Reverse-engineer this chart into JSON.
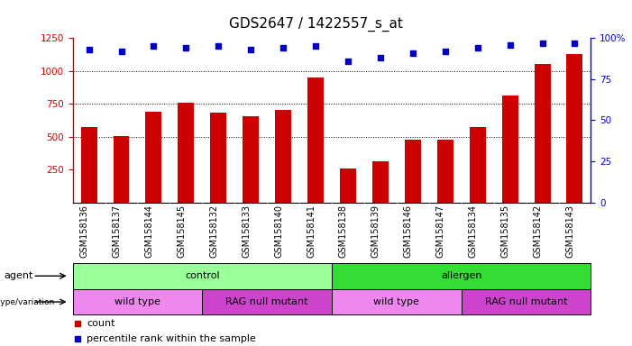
{
  "title": "GDS2647 / 1422557_s_at",
  "samples": [
    "GSM158136",
    "GSM158137",
    "GSM158144",
    "GSM158145",
    "GSM158132",
    "GSM158133",
    "GSM158140",
    "GSM158141",
    "GSM158138",
    "GSM158139",
    "GSM158146",
    "GSM158147",
    "GSM158134",
    "GSM158135",
    "GSM158142",
    "GSM158143"
  ],
  "counts": [
    570,
    505,
    690,
    755,
    680,
    655,
    700,
    950,
    255,
    310,
    475,
    480,
    570,
    815,
    1055,
    1130
  ],
  "percentile_ranks": [
    93,
    92,
    95,
    94,
    95,
    93,
    94,
    95,
    86,
    88,
    91,
    92,
    94,
    96,
    97,
    97
  ],
  "ylim_left": [
    0,
    1250
  ],
  "yticks_left": [
    250,
    500,
    750,
    1000,
    1250
  ],
  "ylim_right": [
    0,
    100
  ],
  "yticks_right": [
    0,
    25,
    50,
    75,
    100
  ],
  "bar_color": "#cc0000",
  "dot_color": "#0000cc",
  "agent_labels": [
    {
      "text": "control",
      "start": 0,
      "end": 8,
      "color": "#99ff99"
    },
    {
      "text": "allergen",
      "start": 8,
      "end": 16,
      "color": "#33dd33"
    }
  ],
  "genotype_labels": [
    {
      "text": "wild type",
      "start": 0,
      "end": 4,
      "color": "#ee88ee"
    },
    {
      "text": "RAG null mutant",
      "start": 4,
      "end": 8,
      "color": "#cc44cc"
    },
    {
      "text": "wild type",
      "start": 8,
      "end": 12,
      "color": "#ee88ee"
    },
    {
      "text": "RAG null mutant",
      "start": 12,
      "end": 16,
      "color": "#cc44cc"
    }
  ],
  "agent_row_label": "agent",
  "genotype_row_label": "genotype/variation",
  "legend_count_label": "count",
  "legend_pct_label": "percentile rank within the sample",
  "tick_label_color": "#cc0000",
  "right_tick_label_color": "#0000cc",
  "title_fontsize": 11,
  "label_fontsize": 8,
  "tick_fontsize": 7.5,
  "xtick_fontsize": 7,
  "xtick_bg": "#d8d8d8"
}
